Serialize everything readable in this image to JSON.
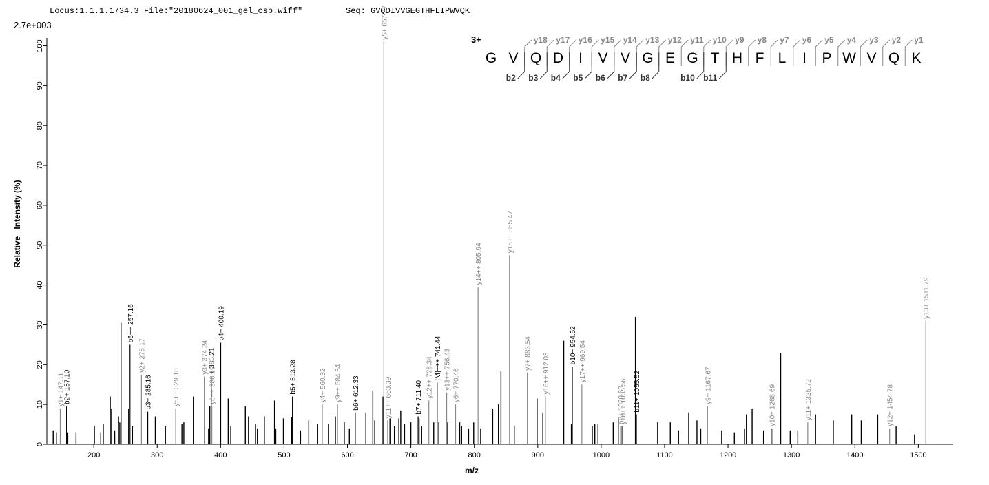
{
  "chart_data": {
    "type": "spectrum",
    "header_locus": "Locus:1.1.1.1734.3 File:\"20180624_001_gel_csb.wiff\"",
    "header_seq": "Seq: GVQDIVVGEGTHFLIPWVQK",
    "scale_label": "2.7e+003",
    "y_label": "Relative   Intensity (%)",
    "x_label": "m/z",
    "xlim": [
      126,
      1555
    ],
    "ylim": [
      0,
      102
    ],
    "xticks": [
      200,
      300,
      400,
      500,
      600,
      700,
      800,
      900,
      1000,
      1100,
      1200,
      1300,
      1400,
      1500
    ],
    "yticks": [
      0,
      10,
      20,
      30,
      40,
      50,
      60,
      70,
      80,
      90,
      100
    ],
    "peak_color": "#000000",
    "x": [
      136,
      141,
      159,
      172,
      201,
      211,
      215,
      226,
      228,
      233,
      239,
      241,
      243,
      255,
      261,
      297,
      313,
      339,
      342,
      357,
      381,
      383,
      412,
      416,
      439,
      444,
      455,
      458,
      469,
      485,
      487,
      499,
      512,
      526,
      539,
      553,
      570,
      581,
      584,
      595,
      603,
      629,
      640,
      643,
      656,
      667,
      674,
      681,
      684,
      690,
      700,
      713,
      717,
      736,
      744,
      758,
      777,
      780,
      791,
      799,
      810,
      829,
      838,
      842,
      863,
      899,
      908,
      941,
      953,
      986,
      990,
      995,
      1019,
      1027,
      1033,
      1054,
      1089,
      1109,
      1122,
      1138,
      1151,
      1157,
      1190,
      1210,
      1226,
      1229,
      1238,
      1256,
      1269,
      1283,
      1298,
      1310,
      1338,
      1366,
      1395,
      1410,
      1436,
      1465,
      1494
    ],
    "values": [
      3.5,
      3,
      3,
      3,
      4.5,
      3,
      5,
      12,
      9,
      3.5,
      7,
      5.5,
      30.5,
      9,
      4.5,
      7,
      4.5,
      5,
      5.5,
      12,
      4,
      9.5,
      11.5,
      4.5,
      9.5,
      7,
      5,
      4,
      7,
      11,
      4,
      6.5,
      6.8,
      3.5,
      6,
      5,
      5,
      7,
      4,
      5.5,
      4,
      8,
      13.5,
      6,
      12,
      6.5,
      4.5,
      6.5,
      8.5,
      5,
      5.5,
      6.5,
      4.5,
      5.5,
      5.5,
      5.5,
      5.5,
      4.5,
      4,
      5.5,
      4,
      9,
      10,
      18.5,
      4.5,
      11.5,
      8,
      26,
      5,
      4.5,
      5,
      5,
      5.5,
      6.5,
      4.5,
      32,
      5.5,
      5.5,
      3.5,
      8,
      6,
      4,
      3.5,
      3,
      4,
      7.5,
      9,
      3.5,
      4,
      23,
      3.5,
      3.5,
      7.5,
      6,
      7.5,
      6,
      7.5,
      4.5,
      2.5
    ],
    "annotated": [
      {
        "mz": 147.11,
        "intensity": 9,
        "label": "y1+ 147.11",
        "color": "#888888"
      },
      {
        "mz": 157.1,
        "intensity": 9.5,
        "label": "b2+ 157.10",
        "color": "#000000"
      },
      {
        "mz": 257.16,
        "intensity": 25,
        "label": "b5++ 257.16",
        "color": "#000000"
      },
      {
        "mz": 275.17,
        "intensity": 17.5,
        "label": "y2+ 275.17",
        "color": "#888888"
      },
      {
        "mz": 285.16,
        "intensity": 8.2,
        "label": "b3+ 285.16",
        "color": "#000000"
      },
      {
        "mz": 329.18,
        "intensity": 9,
        "label": "y5++ 329.18",
        "color": "#888888"
      },
      {
        "mz": 374.24,
        "intensity": 17,
        "label": "y3+ 374.24",
        "color": "#888888"
      },
      {
        "mz": 385.21,
        "intensity": 17,
        "label": "+ 385.21",
        "color": "#000000"
      },
      {
        "mz": 386.19,
        "intensity": 9.5,
        "label": "y6++ 386.19",
        "color": "#888888"
      },
      {
        "mz": 400.19,
        "intensity": 25.5,
        "label": "b4+ 400.19",
        "color": "#000000"
      },
      {
        "mz": 513.28,
        "intensity": 12,
        "label": "b5+ 513.28",
        "color": "#000000"
      },
      {
        "mz": 560.32,
        "intensity": 10,
        "label": "y4+ 560.32",
        "color": "#888888"
      },
      {
        "mz": 584.34,
        "intensity": 10,
        "label": "y9++ 584.34",
        "color": "#888888"
      },
      {
        "mz": 612.33,
        "intensity": 8,
        "label": "b6+ 612.33",
        "color": "#000000"
      },
      {
        "mz": 657.37,
        "intensity": 101,
        "label": "y5+ 657.37",
        "color": "#888888"
      },
      {
        "mz": 663.39,
        "intensity": 6,
        "label": "y11++ 663.39",
        "color": "#888888"
      },
      {
        "mz": 711.4,
        "intensity": 7,
        "label": "b7+ 711.40",
        "color": "#000000"
      },
      {
        "mz": 728.34,
        "intensity": 11,
        "label": "y12++ 728.34",
        "color": "#888888"
      },
      {
        "mz": 741.44,
        "intensity": 15.5,
        "label": "[M]+++ 741.44",
        "color": "#000000"
      },
      {
        "mz": 756.43,
        "intensity": 13,
        "label": "y13++ 756.43",
        "color": "#888888"
      },
      {
        "mz": 770.46,
        "intensity": 10,
        "label": "y6+ 770.46",
        "color": "#888888"
      },
      {
        "mz": 805.94,
        "intensity": 39.5,
        "label": "y14++ 805.94",
        "color": "#888888"
      },
      {
        "mz": 855.47,
        "intensity": 47.5,
        "label": "y15++ 855.47",
        "color": "#888888"
      },
      {
        "mz": 883.54,
        "intensity": 18,
        "label": "y7+ 883.54",
        "color": "#888888"
      },
      {
        "mz": 912.03,
        "intensity": 12,
        "label": "y16++ 912.03",
        "color": "#888888"
      },
      {
        "mz": 954.52,
        "intensity": 19.5,
        "label": "b10+ 954.52",
        "color": "#000000"
      },
      {
        "mz": 969.54,
        "intensity": 15,
        "label": "y17++ 969.54",
        "color": "#888888"
      },
      {
        "mz": 1030.6,
        "intensity": 4.5,
        "label": "b8+ 1030.60",
        "color": "#888888"
      },
      {
        "mz": 1033.56,
        "intensity": 4.5,
        "label": "y18++ 1033.56",
        "color": "#888888"
      },
      {
        "mz": 1055.52,
        "intensity": 7.5,
        "label": "b11+ 1055.52",
        "color": "#000000"
      },
      {
        "mz": 1167.67,
        "intensity": 9.5,
        "label": "y9+ 1167.67",
        "color": "#888888"
      },
      {
        "mz": 1268.69,
        "intensity": 4,
        "label": "y10+ 1268.69",
        "color": "#888888"
      },
      {
        "mz": 1325.72,
        "intensity": 5.5,
        "label": "y11+ 1325.72",
        "color": "#888888"
      },
      {
        "mz": 1454.78,
        "intensity": 4,
        "label": "y12+ 1454.78",
        "color": "#888888"
      },
      {
        "mz": 1511.79,
        "intensity": 31,
        "label": "y13+ 1511.79",
        "color": "#888888"
      }
    ],
    "charge": "3+",
    "sequence": [
      "G",
      "V",
      "Q",
      "D",
      "I",
      "V",
      "V",
      "G",
      "E",
      "G",
      "T",
      "H",
      "F",
      "L",
      "I",
      "P",
      "W",
      "V",
      "Q",
      "K"
    ],
    "y_ions": [
      "y18",
      "y17",
      "y16",
      "y15",
      "y14",
      "y13",
      "y12",
      "y11",
      "y10",
      "y9",
      "y8",
      "y7",
      "y6",
      "y5",
      "y4",
      "y3",
      "y2",
      "y1"
    ],
    "b_ions": [
      "b2",
      "b3",
      "b4",
      "b5",
      "b6",
      "b7",
      "b8",
      "b10",
      "b11"
    ],
    "y_ion_color": "#888888",
    "b_ion_color": "#333333"
  }
}
